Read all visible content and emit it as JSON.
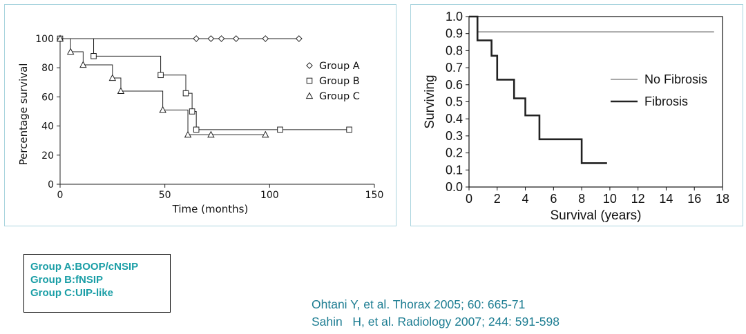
{
  "chart_data": [
    {
      "type": "line",
      "subtype": "step",
      "title": "",
      "xlabel": "Time (months)",
      "ylabel": "Percentage survival",
      "xlim": [
        0,
        150
      ],
      "ylim": [
        0,
        100
      ],
      "xticks": [
        0,
        50,
        100,
        150
      ],
      "yticks": [
        0,
        20,
        40,
        60,
        80,
        100
      ],
      "grid": false,
      "legend_position": "right",
      "series": [
        {
          "name": "Group A",
          "marker": "diamond",
          "x": [
            0,
            65,
            72,
            77,
            84,
            98,
            114
          ],
          "y": [
            100,
            100,
            100,
            100,
            100,
            100,
            100
          ]
        },
        {
          "name": "Group B",
          "marker": "square",
          "x": [
            0,
            16,
            48,
            60,
            63,
            65,
            105,
            138
          ],
          "y": [
            100,
            88,
            75,
            62.5,
            50,
            37.5,
            37.5,
            37.5
          ]
        },
        {
          "name": "Group C",
          "marker": "triangle",
          "x": [
            0,
            5,
            11,
            25,
            29,
            49,
            61,
            72,
            98
          ],
          "y": [
            100,
            91,
            82,
            73,
            64,
            51,
            34,
            34,
            34
          ]
        }
      ]
    },
    {
      "type": "line",
      "subtype": "step",
      "title": "",
      "xlabel": "Survival (years)",
      "ylabel": "Surviving",
      "xlim": [
        0,
        18
      ],
      "ylim": [
        0,
        1
      ],
      "xticks": [
        0,
        2,
        4,
        6,
        8,
        10,
        12,
        14,
        16,
        18
      ],
      "yticks": [
        "0.0",
        "0.1",
        "0.2",
        "0.3",
        "0.4",
        "0.5",
        "0.6",
        "0.7",
        "0.8",
        "0.9",
        "1.0"
      ],
      "grid": false,
      "legend_position": "right",
      "series": [
        {
          "name": "No Fibrosis",
          "color": "#8c8c8c",
          "x": [
            0,
            0.6,
            0.6,
            17.4
          ],
          "y": [
            1.0,
            1.0,
            0.91,
            0.91
          ]
        },
        {
          "name": "Fibrosis",
          "color": "#222222",
          "x": [
            0,
            0.6,
            1.6,
            2.0,
            3.2,
            4.0,
            5.0,
            8.0,
            9.8
          ],
          "y": [
            1.0,
            0.86,
            0.77,
            0.63,
            0.52,
            0.42,
            0.28,
            0.14,
            0.14
          ]
        }
      ]
    }
  ],
  "legend_box": {
    "lines": [
      "Group A:BOOP/cNSIP",
      "Group B:fNSIP",
      "Group C:UIP-like"
    ],
    "color": "#1a9ea6"
  },
  "references": [
    "Ohtani Y, et al. Thorax 2005; 60: 665-71",
    "Sahin   H, et al. Radiology 2007; 244: 591-598"
  ]
}
